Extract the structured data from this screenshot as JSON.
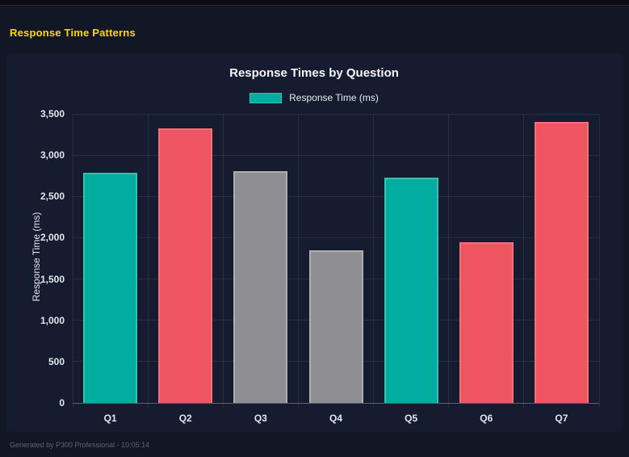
{
  "page": {
    "header_title": "Response Time Patterns",
    "footer": "Generated by P300 Professional - 10:05:14"
  },
  "chart": {
    "title": "Response Times by Question",
    "legend_label": "Response Time (ms)",
    "y_axis_title": "Response Time (ms)"
  },
  "chart_data": {
    "type": "bar",
    "title": "Response Times by Question",
    "categories": [
      "Q1",
      "Q2",
      "Q3",
      "Q4",
      "Q5",
      "Q6",
      "Q7"
    ],
    "series": [
      {
        "name": "Response Time (ms)",
        "values": [
          2790,
          3325,
          2805,
          1850,
          2730,
          1950,
          3405
        ]
      }
    ],
    "xlabel": "",
    "ylabel": "Response Time (ms)",
    "ylim": [
      0,
      3500
    ],
    "ytick_step": 500,
    "ytick_labels": [
      "0",
      "500",
      "1,000",
      "1,500",
      "2,000",
      "2,500",
      "3,000",
      "3,500"
    ],
    "grid": true,
    "legend_position": "top",
    "bar_fill_colors": [
      "#00ad9e",
      "#ef5461",
      "#8e8e93",
      "#8e8e93",
      "#00ad9e",
      "#ef5461",
      "#ef5461"
    ],
    "bar_border_colors": [
      "#35c0af",
      "#f27179",
      "#aeaeb2",
      "#aeaeb2",
      "#35c0af",
      "#f27179",
      "#f27179"
    ],
    "palette": {
      "teal": "#00ad9e",
      "red": "#ef5461",
      "gray": "#8e8e93"
    },
    "background": "#161c30",
    "accent_heading_color": "#ffd700"
  }
}
